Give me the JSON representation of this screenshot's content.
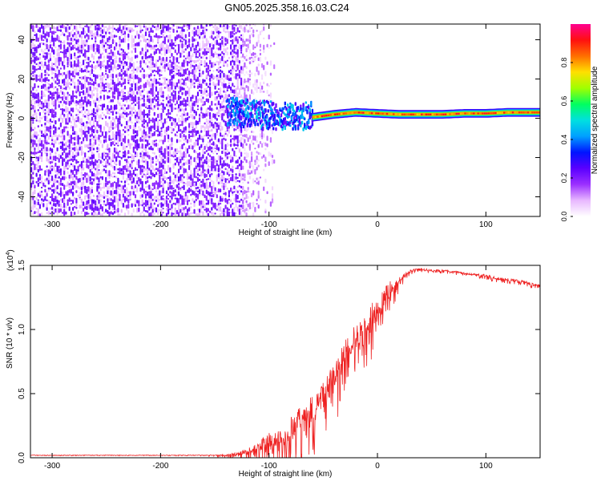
{
  "title": "GN05.2025.358.16.03.C24",
  "colors": {
    "snr_line": "#ee2222",
    "scatter_purple": "#7a1ee8",
    "colormap": [
      "#ffffff",
      "#e8b8ff",
      "#9b30ff",
      "#5a00ff",
      "#0014ff",
      "#00a0ff",
      "#00e0e0",
      "#00ff60",
      "#a0ff00",
      "#ffe000",
      "#ff7000",
      "#ff1010",
      "#ff0090"
    ]
  },
  "chart_data": [
    {
      "type": "heatmap",
      "name": "spectrogram",
      "title": "GN05.2025.358.16.03.C24",
      "xlabel": "Height of straight line (km)",
      "ylabel": "Frequency (Hz)",
      "xlim": [
        -320,
        150
      ],
      "ylim": [
        -50,
        48
      ],
      "xticks": [
        -300,
        -200,
        -100,
        0,
        100
      ],
      "xtick_labels": [
        "-300",
        "-200",
        "-100",
        "0",
        "100"
      ],
      "yticks": [
        -40,
        -20,
        0,
        20,
        40
      ],
      "ytick_labels": [
        "-40",
        "-20",
        "0",
        "20",
        "40"
      ],
      "colorbar": {
        "label": "Normalized spectral amplitude",
        "range": [
          0,
          1
        ],
        "ticks": [
          0.0,
          0.2,
          0.4,
          0.6,
          0.8
        ],
        "tick_labels": [
          "0.0",
          "0.2",
          "0.4",
          "0.6",
          "0.8"
        ]
      },
      "regions": [
        {
          "label": "broadband noise",
          "x": [
            -320,
            -125
          ],
          "freq": [
            -50,
            48
          ],
          "amplitude": 0.15
        },
        {
          "label": "noise fade",
          "x": [
            -140,
            -95
          ],
          "freq": [
            -45,
            25
          ],
          "amplitude": 0.08
        },
        {
          "label": "signal onset",
          "x": [
            -140,
            -60
          ],
          "freq": [
            -6,
            8
          ],
          "amplitude": 0.35
        },
        {
          "label": "carrier line",
          "x": [
            -60,
            150
          ],
          "freq": [
            0,
            4
          ],
          "amplitude": 0.95
        }
      ],
      "carrier_freq_hz": [
        [
          -140,
          3
        ],
        [
          -120,
          2
        ],
        [
          -100,
          1
        ],
        [
          -80,
          0
        ],
        [
          -60,
          0.5
        ],
        [
          -40,
          2
        ],
        [
          -20,
          3
        ],
        [
          0,
          2.5
        ],
        [
          20,
          2
        ],
        [
          40,
          2
        ],
        [
          60,
          2
        ],
        [
          80,
          2.5
        ],
        [
          100,
          2.5
        ],
        [
          120,
          3
        ],
        [
          150,
          3
        ]
      ]
    },
    {
      "type": "line",
      "name": "snr",
      "xlabel": "Height of straight line (km)",
      "ylabel": "SNR (10 * v/v)",
      "y_multiplier": "(x10",
      "y_multiplier_exp": "4",
      "y_multiplier_close": ")",
      "xlim": [
        -320,
        150
      ],
      "ylim": [
        0,
        1.5
      ],
      "xticks": [
        -300,
        -200,
        -100,
        0,
        100
      ],
      "xtick_labels": [
        "-300",
        "-200",
        "-100",
        "0",
        "100"
      ],
      "yticks": [
        0.0,
        0.5,
        1.0,
        1.5
      ],
      "ytick_labels": [
        "0.0",
        "0.5",
        "1.0",
        "1.5"
      ],
      "series": [
        {
          "name": "SNR",
          "x": [
            -320,
            -280,
            -240,
            -200,
            -160,
            -140,
            -130,
            -120,
            -110,
            -100,
            -90,
            -80,
            -70,
            -60,
            -50,
            -40,
            -30,
            -20,
            -10,
            0,
            10,
            20,
            30,
            40,
            50,
            60,
            70,
            80,
            90,
            100,
            110,
            120,
            130,
            140,
            150
          ],
          "y": [
            0.02,
            0.02,
            0.02,
            0.02,
            0.02,
            0.02,
            0.03,
            0.05,
            0.08,
            0.13,
            0.16,
            0.22,
            0.3,
            0.38,
            0.5,
            0.62,
            0.8,
            0.95,
            1.05,
            1.15,
            1.3,
            1.38,
            1.46,
            1.47,
            1.46,
            1.46,
            1.45,
            1.44,
            1.43,
            1.42,
            1.4,
            1.39,
            1.38,
            1.36,
            1.34
          ],
          "noise_amplitude": [
            0.003,
            0.003,
            0.003,
            0.003,
            0.004,
            0.01,
            0.02,
            0.04,
            0.08,
            0.14,
            0.16,
            0.2,
            0.22,
            0.24,
            0.24,
            0.24,
            0.22,
            0.2,
            0.22,
            0.2,
            0.16,
            0.05,
            0.02,
            0.015,
            0.015,
            0.015,
            0.015,
            0.015,
            0.015,
            0.02,
            0.02,
            0.02,
            0.02,
            0.02,
            0.02
          ]
        }
      ]
    }
  ]
}
